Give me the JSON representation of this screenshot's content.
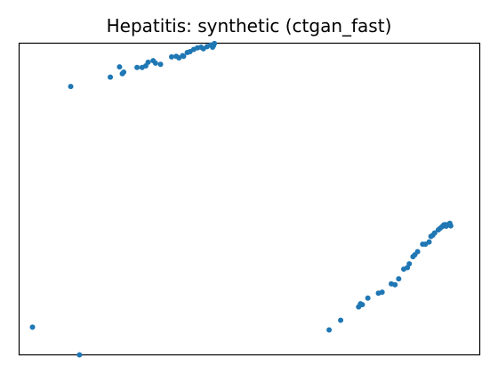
{
  "chart_data": {
    "type": "scatter",
    "title": "Hepatitis: synthetic (ctgan_fast)",
    "xlabel": "",
    "ylabel": "",
    "xlim": [
      0,
      1
    ],
    "ylim": [
      0,
      1
    ],
    "x_ticks_visible": false,
    "y_ticks_visible": false,
    "grid": false,
    "legend": "none",
    "marker_color": "#1f77b4",
    "series": [
      {
        "points": [
          [
            0.112,
            0.861
          ],
          [
            0.198,
            0.891
          ],
          [
            0.218,
            0.924
          ],
          [
            0.224,
            0.902
          ],
          [
            0.227,
            0.907
          ],
          [
            0.256,
            0.922
          ],
          [
            0.267,
            0.922
          ],
          [
            0.275,
            0.927
          ],
          [
            0.28,
            0.939
          ],
          [
            0.291,
            0.944
          ],
          [
            0.296,
            0.936
          ],
          [
            0.307,
            0.932
          ],
          [
            0.331,
            0.956
          ],
          [
            0.341,
            0.958
          ],
          [
            0.347,
            0.953
          ],
          [
            0.355,
            0.96
          ],
          [
            0.357,
            0.958
          ],
          [
            0.365,
            0.97
          ],
          [
            0.371,
            0.973
          ],
          [
            0.379,
            0.98
          ],
          [
            0.387,
            0.985
          ],
          [
            0.395,
            0.987
          ],
          [
            0.4,
            0.982
          ],
          [
            0.408,
            0.989
          ],
          [
            0.416,
            0.994
          ],
          [
            0.422,
            0.992
          ],
          [
            0.42,
            0.987
          ],
          [
            0.424,
            0.999
          ],
          [
            0.029,
            0.089
          ],
          [
            0.131,
            0.0
          ],
          [
            0.673,
            0.08
          ],
          [
            0.698,
            0.111
          ],
          [
            0.737,
            0.154
          ],
          [
            0.741,
            0.164
          ],
          [
            0.745,
            0.161
          ],
          [
            0.757,
            0.182
          ],
          [
            0.78,
            0.198
          ],
          [
            0.788,
            0.201
          ],
          [
            0.808,
            0.228
          ],
          [
            0.816,
            0.225
          ],
          [
            0.824,
            0.244
          ],
          [
            0.835,
            0.275
          ],
          [
            0.843,
            0.28
          ],
          [
            0.847,
            0.292
          ],
          [
            0.855,
            0.315
          ],
          [
            0.859,
            0.321
          ],
          [
            0.865,
            0.331
          ],
          [
            0.876,
            0.355
          ],
          [
            0.882,
            0.355
          ],
          [
            0.89,
            0.362
          ],
          [
            0.894,
            0.38
          ],
          [
            0.898,
            0.384
          ],
          [
            0.902,
            0.391
          ],
          [
            0.91,
            0.401
          ],
          [
            0.914,
            0.406
          ],
          [
            0.918,
            0.411
          ],
          [
            0.922,
            0.417
          ],
          [
            0.925,
            0.418
          ],
          [
            0.927,
            0.413
          ],
          [
            0.931,
            0.418
          ],
          [
            0.935,
            0.422
          ],
          [
            0.937,
            0.414
          ]
        ]
      }
    ]
  }
}
